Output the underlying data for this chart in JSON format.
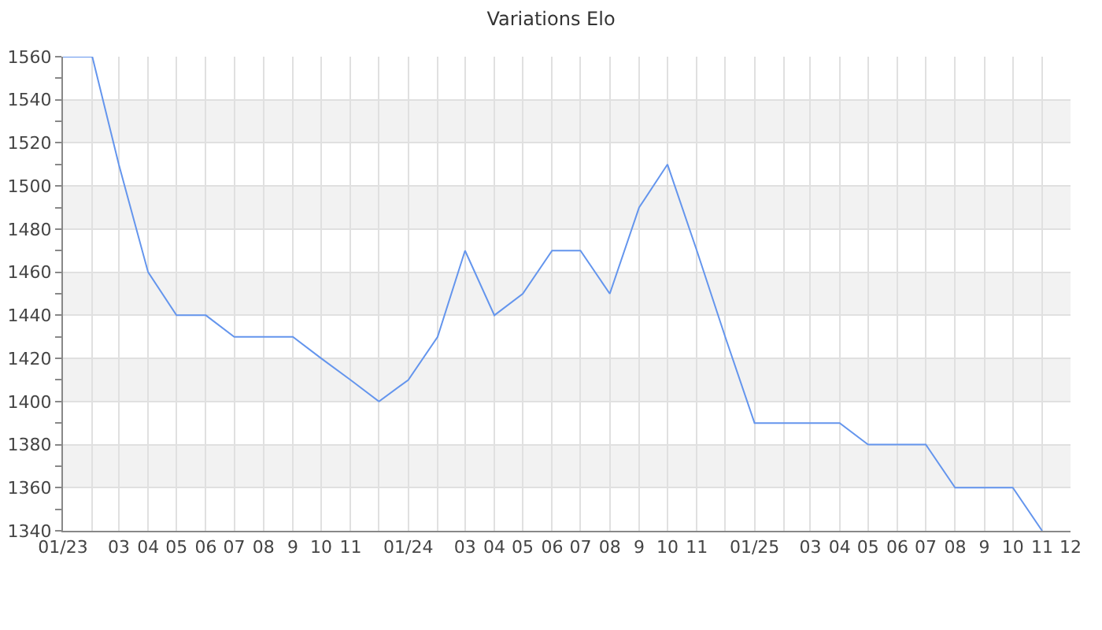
{
  "chart_data": {
    "type": "line",
    "title": "Variations Elo",
    "x": [
      "2023-01",
      "2023-02",
      "2023-03",
      "2023-04",
      "2023-05",
      "2023-06",
      "2023-07",
      "2023-08",
      "2023-09",
      "2023-10",
      "2023-11",
      "2023-12",
      "2024-01",
      "2024-02",
      "2024-03",
      "2024-04",
      "2024-05",
      "2024-06",
      "2024-07",
      "2024-08",
      "2024-09",
      "2024-10",
      "2024-11",
      "2024-12",
      "2025-01",
      "2025-02",
      "2025-03",
      "2025-04",
      "2025-05",
      "2025-06",
      "2025-07",
      "2025-08",
      "2025-09",
      "2025-10",
      "2025-11"
    ],
    "series": [
      {
        "color": "#6495ed",
        "values": [
          1560,
          1560,
          1510,
          1460,
          1440,
          1440,
          1430,
          1430,
          1430,
          1420,
          1410,
          1400,
          1410,
          1430,
          1470,
          1440,
          1450,
          1470,
          1470,
          1450,
          1490,
          1510,
          1470,
          1430,
          1390,
          1390,
          1390,
          1390,
          1380,
          1380,
          1380,
          1360,
          1360,
          1360,
          1340
        ]
      }
    ],
    "xlim": [
      "2023-01",
      "2025-12"
    ],
    "xticks": [
      {
        "value": "2023-01",
        "label": "01/23"
      },
      {
        "value": "2023-02",
        "label": null
      },
      {
        "value": "2023-03",
        "label": "03"
      },
      {
        "value": "2023-04",
        "label": "04"
      },
      {
        "value": "2023-05",
        "label": "05"
      },
      {
        "value": "2023-06",
        "label": "06"
      },
      {
        "value": "2023-07",
        "label": "07"
      },
      {
        "value": "2023-08",
        "label": "08"
      },
      {
        "value": "2023-09",
        "label": "9"
      },
      {
        "value": "2023-10",
        "label": "10"
      },
      {
        "value": "2023-11",
        "label": "11"
      },
      {
        "value": "2023-12",
        "label": null
      },
      {
        "value": "2024-01",
        "label": "01/24"
      },
      {
        "value": "2024-02",
        "label": null
      },
      {
        "value": "2024-03",
        "label": "03"
      },
      {
        "value": "2024-04",
        "label": "04"
      },
      {
        "value": "2024-05",
        "label": "05"
      },
      {
        "value": "2024-06",
        "label": "06"
      },
      {
        "value": "2024-07",
        "label": "07"
      },
      {
        "value": "2024-08",
        "label": "08"
      },
      {
        "value": "2024-09",
        "label": "9"
      },
      {
        "value": "2024-10",
        "label": "10"
      },
      {
        "value": "2024-11",
        "label": "11"
      },
      {
        "value": "2024-12",
        "label": null
      },
      {
        "value": "2025-01",
        "label": "01/25"
      },
      {
        "value": "2025-02",
        "label": null
      },
      {
        "value": "2025-03",
        "label": "03"
      },
      {
        "value": "2025-04",
        "label": "04"
      },
      {
        "value": "2025-05",
        "label": "05"
      },
      {
        "value": "2025-06",
        "label": "06"
      },
      {
        "value": "2025-07",
        "label": "07"
      },
      {
        "value": "2025-08",
        "label": "08"
      },
      {
        "value": "2025-09",
        "label": "9"
      },
      {
        "value": "2025-10",
        "label": "10"
      },
      {
        "value": "2025-11",
        "label": "11"
      },
      {
        "value": "2025-12",
        "label": "12"
      }
    ],
    "ylim": [
      1340,
      1560
    ],
    "yticks": [
      1340,
      {
        "value": 1350,
        "label": null
      },
      1360,
      {
        "value": 1370,
        "label": null
      },
      1380,
      {
        "value": 1390,
        "label": null
      },
      1400,
      {
        "value": 1410,
        "label": null
      },
      1420,
      {
        "value": 1430,
        "label": null
      },
      1440,
      {
        "value": 1450,
        "label": null
      },
      1460,
      {
        "value": 1470,
        "label": null
      },
      1480,
      {
        "value": 1490,
        "label": null
      },
      1500,
      {
        "value": 1510,
        "label": null
      },
      1520,
      {
        "value": 1530,
        "label": null
      },
      1540,
      {
        "value": 1550,
        "label": null
      },
      1560
    ],
    "bands": [
      {
        "axis": "y",
        "from": 1360,
        "to": 1380,
        "color": "#f2f2f2"
      },
      {
        "axis": "y",
        "from": 1400,
        "to": 1420,
        "color": "#f2f2f2"
      },
      {
        "axis": "y",
        "from": 1440,
        "to": 1460,
        "color": "#f2f2f2"
      },
      {
        "axis": "y",
        "from": 1480,
        "to": 1500,
        "color": "#f2f2f2"
      },
      {
        "axis": "y",
        "from": 1520,
        "to": 1540,
        "color": "#f2f2f2"
      }
    ],
    "grid": true,
    "marker": "none",
    "line_style": "solid"
  }
}
